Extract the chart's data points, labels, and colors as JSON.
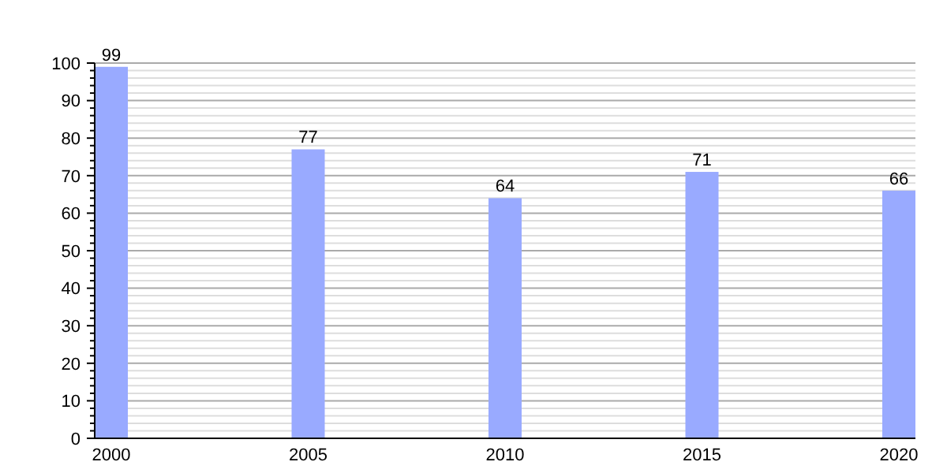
{
  "chart_data": {
    "type": "bar",
    "categories": [
      "2000",
      "2005",
      "2010",
      "2015",
      "2020"
    ],
    "values": [
      99,
      77,
      64,
      71,
      66
    ],
    "color": "#99aaff",
    "data_labels": true,
    "ylim": [
      0,
      100
    ],
    "yticks": [
      0,
      {
        "value": 2,
        "label": null
      },
      {
        "value": 4,
        "label": null
      },
      {
        "value": 6,
        "label": null
      },
      {
        "value": 8,
        "label": null
      },
      10,
      {
        "value": 12,
        "label": null
      },
      {
        "value": 14,
        "label": null
      },
      {
        "value": 16,
        "label": null
      },
      {
        "value": 18,
        "label": null
      },
      20,
      {
        "value": 22,
        "label": null
      },
      {
        "value": 24,
        "label": null
      },
      {
        "value": 26,
        "label": null
      },
      {
        "value": 28,
        "label": null
      },
      30,
      {
        "value": 32,
        "label": null
      },
      {
        "value": 34,
        "label": null
      },
      {
        "value": 36,
        "label": null
      },
      {
        "value": 38,
        "label": null
      },
      40,
      {
        "value": 42,
        "label": null
      },
      {
        "value": 44,
        "label": null
      },
      {
        "value": 46,
        "label": null
      },
      {
        "value": 48,
        "label": null
      },
      50,
      {
        "value": 52,
        "label": null
      },
      {
        "value": 54,
        "label": null
      },
      {
        "value": 56,
        "label": null
      },
      {
        "value": 58,
        "label": null
      },
      60,
      {
        "value": 62,
        "label": null
      },
      {
        "value": 64,
        "label": null
      },
      {
        "value": 66,
        "label": null
      },
      {
        "value": 68,
        "label": null
      },
      70,
      {
        "value": 72,
        "label": null
      },
      {
        "value": 74,
        "label": null
      },
      {
        "value": 76,
        "label": null
      },
      {
        "value": 78,
        "label": null
      },
      80,
      {
        "value": 82,
        "label": null
      },
      {
        "value": 84,
        "label": null
      },
      {
        "value": 86,
        "label": null
      },
      {
        "value": 88,
        "label": null
      },
      90,
      {
        "value": 92,
        "label": null
      },
      {
        "value": 94,
        "label": null
      },
      {
        "value": 96,
        "label": null
      },
      {
        "value": 98,
        "label": null
      },
      100
    ],
    "grid": true
  }
}
